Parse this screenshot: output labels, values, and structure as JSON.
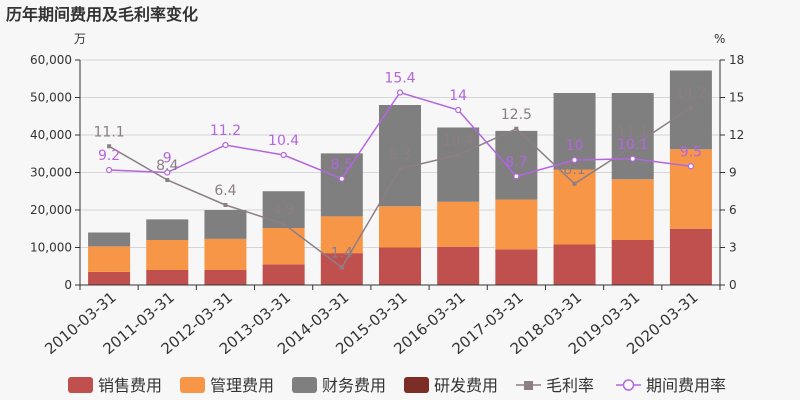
{
  "chart_data": {
    "type": "bar",
    "title": "历年期间费用及毛利率变化",
    "left_unit": "万",
    "right_unit": "%",
    "categories": [
      "2010-03-31",
      "2011-03-31",
      "2012-03-31",
      "2013-03-31",
      "2014-03-31",
      "2015-03-31",
      "2016-03-31",
      "2017-03-31",
      "2018-03-31",
      "2019-03-31",
      "2020-03-31"
    ],
    "left_axis": {
      "ylim": [
        0,
        60000
      ],
      "ticks": [
        "0",
        "10,000",
        "20,000",
        "30,000",
        "40,000",
        "50,000",
        "60,000"
      ],
      "tick_values": [
        0,
        10000,
        20000,
        30000,
        40000,
        50000,
        60000
      ]
    },
    "right_axis": {
      "ylim": [
        0,
        18
      ],
      "ticks": [
        "0",
        "3",
        "6",
        "9",
        "12",
        "15",
        "18"
      ],
      "tick_values": [
        0,
        3,
        6,
        9,
        12,
        15,
        18
      ]
    },
    "bar_series": [
      {
        "name": "销售费用",
        "color": "#c0504d",
        "values": [
          3500,
          4000,
          4000,
          5500,
          8500,
          10000,
          10200,
          9500,
          10800,
          12000,
          15000
        ]
      },
      {
        "name": "管理费用",
        "color": "#f79646",
        "values": [
          6800,
          8000,
          8300,
          9700,
          9800,
          11000,
          12000,
          13300,
          20000,
          16200,
          21200
        ]
      },
      {
        "name": "财务费用",
        "color": "#7f7f7f",
        "values": [
          3700,
          5500,
          7700,
          9800,
          16800,
          27000,
          19800,
          18300,
          20400,
          23000,
          21000
        ]
      },
      {
        "name": "研发费用",
        "color": "#7b2d26",
        "values": [
          0,
          0,
          0,
          0,
          0,
          0,
          0,
          0,
          0,
          0,
          0
        ]
      }
    ],
    "line_series": [
      {
        "name": "毛利率",
        "color": "#8c7e86",
        "marker": "square",
        "values": [
          11.1,
          8.4,
          6.4,
          4.9,
          1.4,
          9.3,
          10.4,
          12.5,
          8.1,
          11.1,
          14.2
        ],
        "labels": [
          "11.1",
          "8.4",
          "6.4",
          "4.9",
          "1.4",
          "9.3",
          "10.4",
          "12.5",
          "8.1",
          "11.1",
          "14.2"
        ]
      },
      {
        "name": "期间费用率",
        "color": "#b366e0",
        "marker": "circle",
        "values": [
          9.2,
          9.0,
          11.2,
          10.4,
          8.5,
          15.4,
          14.0,
          8.7,
          10.0,
          10.1,
          9.5
        ],
        "labels": [
          "9.2",
          "9",
          "11.2",
          "10.4",
          "8.5",
          "15.4",
          "14",
          "8.7",
          "10",
          "10.1",
          "9.5"
        ]
      }
    ]
  }
}
